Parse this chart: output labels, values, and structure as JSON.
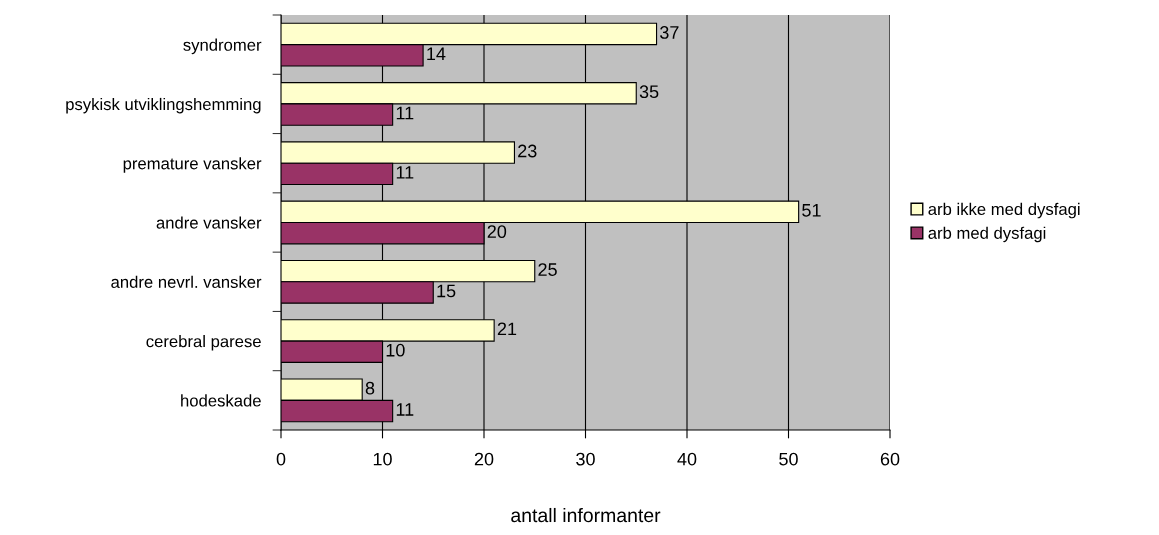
{
  "chart_data": {
    "type": "bar",
    "orientation": "horizontal",
    "xlabel": "antall informanter",
    "categories": [
      "syndromer",
      "psykisk utviklingshemming",
      "premature vansker",
      "andre vansker",
      "andre nevrl. vansker",
      "cerebral parese",
      "hodeskade"
    ],
    "series": [
      {
        "name": "arb ikke med dysfagi",
        "color": "#ffffcc",
        "values": [
          37,
          35,
          23,
          51,
          25,
          21,
          8
        ]
      },
      {
        "name": "arb med dysfagi",
        "color": "#993366",
        "values": [
          14,
          11,
          11,
          20,
          15,
          10,
          11
        ]
      }
    ],
    "xlim": [
      0,
      60
    ],
    "xticks": [
      0,
      10,
      20,
      30,
      40,
      50,
      60
    ],
    "grid": "x",
    "legend": "right",
    "data_labels": true
  }
}
